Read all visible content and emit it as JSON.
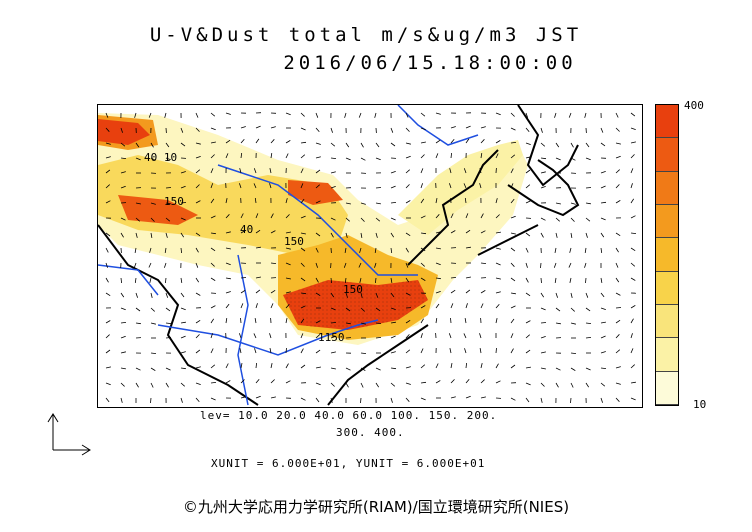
{
  "title_line1": "U-V&Dust total m/s&ug/m3 JST",
  "title_line2": "2016/06/15.18:00:00",
  "colorbar": {
    "max_label": "400",
    "min_label": "10",
    "colors": [
      "#fdfbd9",
      "#fbf2a6",
      "#f9e47b",
      "#f8d34a",
      "#f6b92a",
      "#f39a1e",
      "#f07a17",
      "#ed5a12",
      "#e8400e"
    ]
  },
  "contour_labels": [
    "40 10",
    "150",
    "40",
    "150",
    "1150",
    "150"
  ],
  "levels_line1": "lev= 10.0 20.0 40.0 60.0 100. 150. 200.",
  "levels_line2": "300. 400.",
  "units_line": "XUNIT = 6.000E+01, YUNIT = 6.000E+01",
  "copyright": "©九州大学応用力学研究所(RIAM)/国立環境研究所(NIES)",
  "colors": {
    "coast": "#000000",
    "rivers": "#1f4fe0",
    "dust_low": "#fdf6c0",
    "dust_high": "#e8400e"
  }
}
